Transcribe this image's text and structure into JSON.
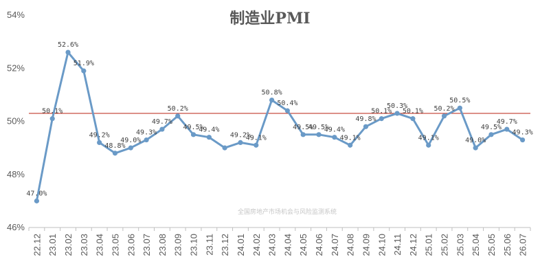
{
  "chart_data": {
    "type": "line",
    "title": "制造业PMI",
    "xlabel": "",
    "ylabel": "",
    "watermark": "全国房地产市场机会与风险监测系统",
    "x": [
      "22.12",
      "23.01",
      "23.02",
      "23.03",
      "23.04",
      "23.05",
      "23.06",
      "23.07",
      "23.08",
      "23.09",
      "23.10",
      "23.11",
      "23.12",
      "24.01",
      "24.02",
      "24.03",
      "24.04",
      "24.05",
      "24.06",
      "24.07",
      "24.08",
      "24.09",
      "24.10",
      "24.11",
      "24.12",
      "25.01",
      "25.02",
      "25.03",
      "25.04",
      "25.05",
      "25.06",
      "26.07"
    ],
    "values": [
      47.0,
      50.1,
      52.6,
      51.9,
      49.2,
      48.8,
      49.0,
      49.3,
      49.7,
      50.2,
      49.5,
      49.4,
      49.0,
      49.2,
      49.1,
      50.8,
      50.4,
      49.5,
      49.5,
      49.4,
      49.1,
      49.8,
      50.1,
      50.3,
      50.1,
      49.1,
      50.2,
      50.5,
      49.0,
      49.5,
      49.7,
      49.3
    ],
    "data_labels": [
      "47.0%",
      "50.1%",
      "52.6%",
      "51.9%",
      "49.2%",
      "48.8%",
      "49.0%",
      "49.3%",
      "49.7%",
      "50.2%",
      "49.5%",
      "49.4%",
      "",
      "49.2%",
      "49.1%",
      "50.8%",
      "50.4%",
      "49.5%",
      "49.5%",
      "49.4%",
      "49.1%",
      "49.8%",
      "50.1%",
      "50.3%",
      "50.1%",
      "49.1%",
      "50.2%",
      "50.5%",
      "49.0%",
      "49.5%",
      "49.7%",
      "49.3%"
    ],
    "ylim": [
      46,
      54
    ],
    "yticks": [
      46,
      48,
      50,
      52,
      54
    ],
    "ytick_labels": [
      "46%",
      "48%",
      "50%",
      "52%",
      "54%"
    ],
    "reference_line": 50.3,
    "grid": false,
    "colors": {
      "line": "#6a9ac7",
      "reference": "#c0392b",
      "axis": "#bfbfbf"
    }
  }
}
